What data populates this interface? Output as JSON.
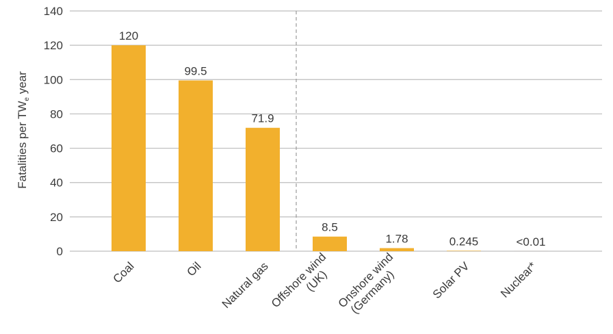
{
  "chart_data": {
    "type": "bar",
    "title": "",
    "xlabel": "",
    "ylabel": {
      "main": "Fatalities per TW",
      "subscript": "e",
      "suffix": " year"
    },
    "ylim": [
      0,
      140
    ],
    "yticks": [
      "0",
      "20",
      "40",
      "60",
      "80",
      "100",
      "120",
      "140"
    ],
    "grid": true,
    "bar_color": "#F2B02D",
    "grid_color": "#bdbdbd",
    "divider_after_category": 3,
    "categories": [
      {
        "label": [
          "Coal"
        ],
        "value": 120,
        "value_label": "120"
      },
      {
        "label": [
          "Oil"
        ],
        "value": 99.5,
        "value_label": "99.5"
      },
      {
        "label": [
          "Natural gas"
        ],
        "value": 71.9,
        "value_label": "71.9"
      },
      {
        "label": [
          "Offshore wind",
          "(UK)"
        ],
        "value": 8.5,
        "value_label": "8.5"
      },
      {
        "label": [
          "Onshore wind",
          "(Germany)"
        ],
        "value": 1.78,
        "value_label": "1.78"
      },
      {
        "label": [
          "Solar PV"
        ],
        "value": 0.245,
        "value_label": "0.245"
      },
      {
        "label": [
          "Nuclear*"
        ],
        "value": 0.01,
        "value_label": "<0.01"
      }
    ]
  }
}
